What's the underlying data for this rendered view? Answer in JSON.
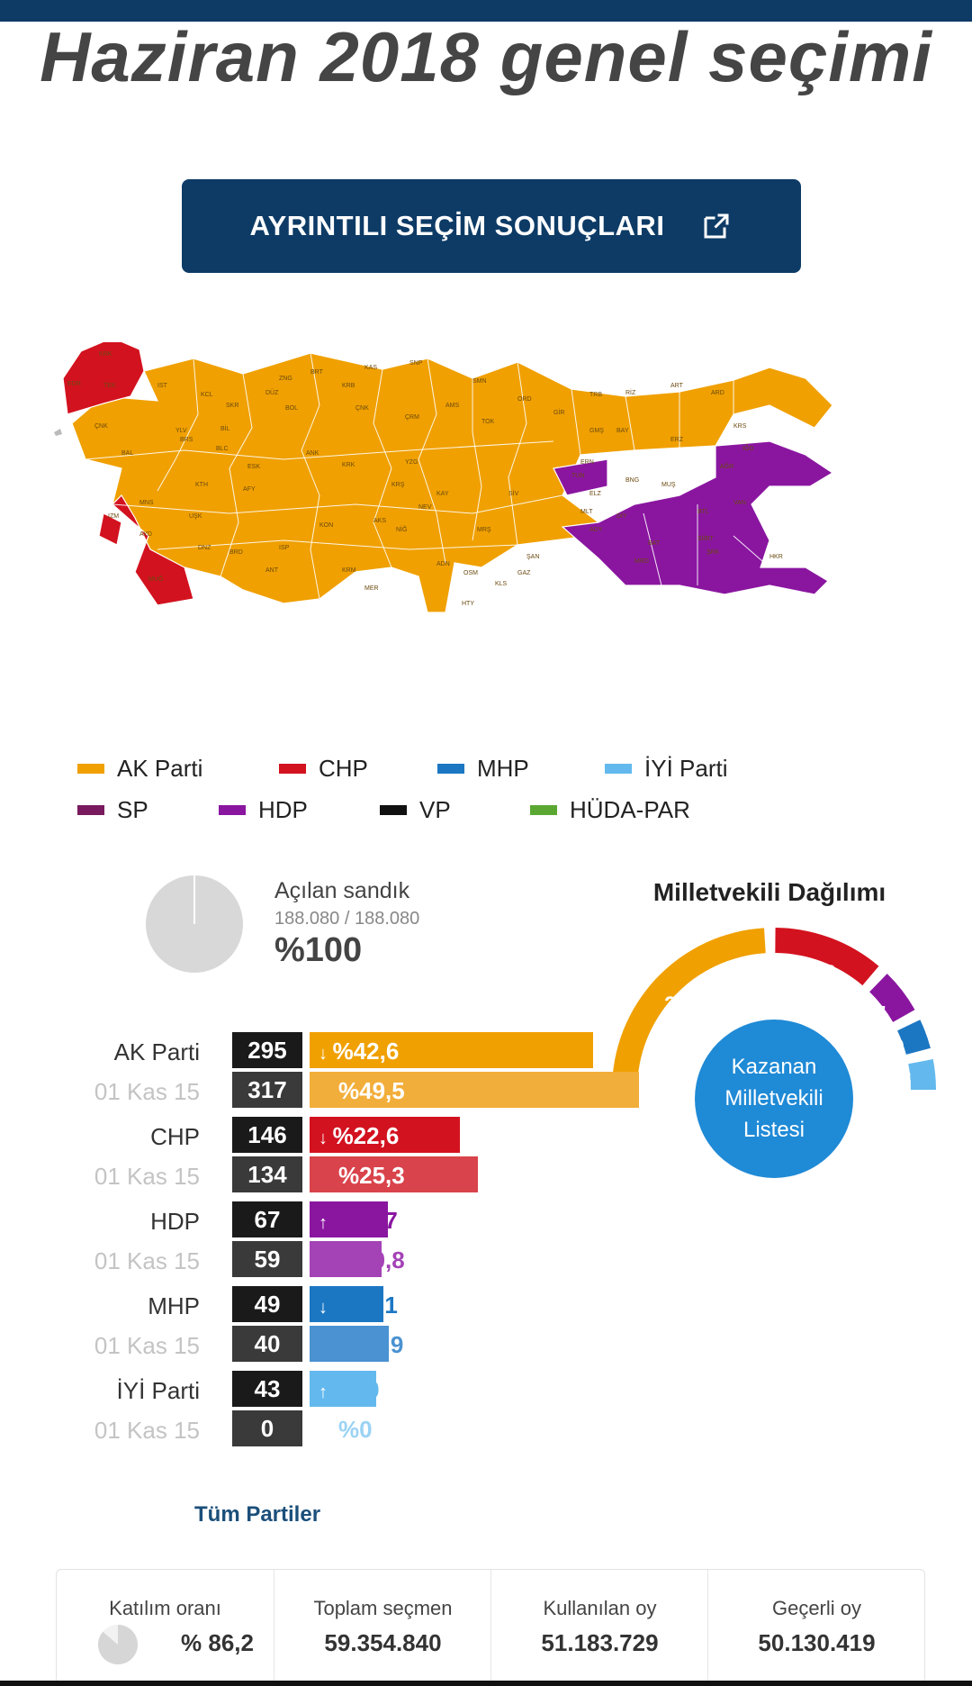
{
  "header": {
    "title": "Haziran 2018 genel seçimi"
  },
  "cta": {
    "label": "AYRINTILI SEÇİM SONUÇLARI",
    "icon": "external-link-icon"
  },
  "colors": {
    "ak": "#f0a000",
    "ak_prev": "#f2ae3a",
    "chp": "#d3121f",
    "chp_prev": "#d9434b",
    "hdp": "#8a16a0",
    "hdp_prev": "#a443b6",
    "mhp": "#1c77c3",
    "mhp_prev": "#4a92d1",
    "iyi": "#63b9ee",
    "iyi_prev": "#9bd3f4",
    "sp": "#7a1a5e",
    "vp": "#111111",
    "huda": "#5aa832",
    "brand": "#0d3b66",
    "kazanan": "#1f8ad6"
  },
  "map": {
    "provinces": [
      "KRK",
      "EDR",
      "TEK",
      "IST",
      "KCL",
      "SKR",
      "DÜZ",
      "BOL",
      "ZNG",
      "BRT",
      "KRB",
      "KAS",
      "SNP",
      "ÇNK",
      "ÇRM",
      "AMS",
      "SMN",
      "TOK",
      "ORD",
      "GİR",
      "TRB",
      "RİZ",
      "ART",
      "ARD",
      "GMŞ",
      "BAY",
      "KRS",
      "ERZ",
      "IĞD",
      "AĞR",
      "ERN",
      "TUN",
      "BNG",
      "MUŞ",
      "VAN",
      "BTL",
      "SİİRT",
      "ŞRK",
      "HKR",
      "BAT",
      "MRD",
      "DİY",
      "ELZ",
      "MLT",
      "ADY",
      "ŞAN",
      "GAZ",
      "KLS",
      "HTY",
      "OSM",
      "ADN",
      "MRŞ",
      "KAY",
      "SİV",
      "YZG",
      "KRŞ",
      "NEV",
      "AKS",
      "NİĞ",
      "KRM",
      "MER",
      "KON",
      "ANT",
      "BRD",
      "ISP",
      "AFY",
      "DNZ",
      "UŞK",
      "KTH",
      "ESK",
      "BLC",
      "BRS",
      "BAL",
      "ÇNK",
      "YLV",
      "MNS",
      "IZM",
      "AYD",
      "MUĞ",
      "ANK",
      "KRK",
      "BİL"
    ]
  },
  "legend": [
    {
      "name": "AK Parti",
      "color": "#f0a000"
    },
    {
      "name": "CHP",
      "color": "#d3121f"
    },
    {
      "name": "MHP",
      "color": "#1c77c3"
    },
    {
      "name": "İYİ Parti",
      "color": "#63b9ee"
    },
    {
      "name": "SP",
      "color": "#7a1a5e"
    },
    {
      "name": "HDP",
      "color": "#8a16a0"
    },
    {
      "name": "VP",
      "color": "#111111"
    },
    {
      "name": "HÜDA-PAR",
      "color": "#5aa832"
    }
  ],
  "sandik": {
    "label": "Açılan sandık",
    "count": "188.080 / 188.080",
    "pct": "%100",
    "fraction": 1.0
  },
  "milletvekili": {
    "title": "Milletvekili Dağılımı",
    "center_label": [
      "Kazanan",
      "Milletvekili",
      "Listesi"
    ],
    "seats": [
      {
        "party": "AK Parti",
        "value": 295,
        "color": "#f0a000"
      },
      {
        "party": "CHP",
        "value": 146,
        "color": "#d3121f"
      },
      {
        "party": "HDP",
        "value": 67,
        "color": "#8a16a0"
      },
      {
        "party": "MHP",
        "value": 49,
        "color": "#1c77c3"
      },
      {
        "party": "İYİ Parti",
        "value": 43,
        "color": "#63b9ee"
      }
    ]
  },
  "results": [
    {
      "name": "AK Parti",
      "seats": "295",
      "pct": "%42,6",
      "trend": "down",
      "value": 42.6,
      "color": "#f0a000",
      "prev": {
        "label": "01 Kas 15",
        "seats": "317",
        "pct": "%49,5",
        "value": 49.5,
        "color": "#f2ae3a"
      }
    },
    {
      "name": "CHP",
      "seats": "146",
      "pct": "%22,6",
      "trend": "down",
      "value": 22.6,
      "color": "#d3121f",
      "prev": {
        "label": "01 Kas 15",
        "seats": "134",
        "pct": "%25,3",
        "value": 25.3,
        "color": "#d9434b"
      }
    },
    {
      "name": "HDP",
      "seats": "67",
      "pct": "%11,7",
      "trend": "up",
      "value": 11.7,
      "color": "#8a16a0",
      "prev": {
        "label": "01 Kas 15",
        "seats": "59",
        "pct": "%10,8",
        "value": 10.8,
        "color": "#a443b6"
      }
    },
    {
      "name": "MHP",
      "seats": "49",
      "pct": "%11,1",
      "trend": "down",
      "value": 11.1,
      "color": "#1c77c3",
      "prev": {
        "label": "01 Kas 15",
        "seats": "40",
        "pct": "%11,9",
        "value": 11.9,
        "color": "#4a92d1"
      }
    },
    {
      "name": "İYİ Parti",
      "seats": "43",
      "pct": "%10",
      "trend": "up",
      "value": 10,
      "color": "#63b9ee",
      "prev": {
        "label": "01 Kas 15",
        "seats": "0",
        "pct": "%0",
        "value": 0,
        "color": "#9bd3f4"
      }
    }
  ],
  "tum_partiler": "Tüm Partiler",
  "stats": [
    {
      "label": "Katılım oranı",
      "value": "% 86,2",
      "fraction": 0.862
    },
    {
      "label": "Toplam seçmen",
      "value": "59.354.840"
    },
    {
      "label": "Kullanılan oy",
      "value": "51.183.729"
    },
    {
      "label": "Geçerli oy",
      "value": "50.130.419"
    }
  ]
}
